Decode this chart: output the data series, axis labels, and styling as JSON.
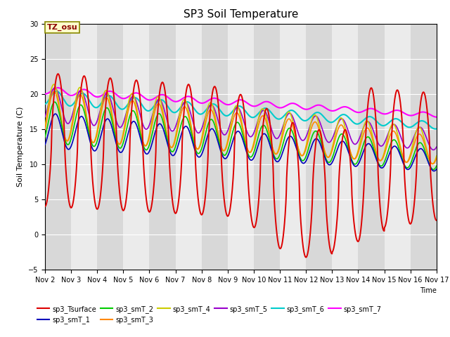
{
  "title": "SP3 Soil Temperature",
  "ylabel": "Soil Temperature (C)",
  "time_label": "Time",
  "tz_label": "TZ_osu",
  "ylim": [
    -5,
    30
  ],
  "yticks": [
    -5,
    0,
    5,
    10,
    15,
    20,
    25,
    30
  ],
  "xtick_labels": [
    "Nov 2",
    "Nov 3",
    "Nov 4",
    "Nov 5",
    "Nov 6",
    "Nov 7",
    "Nov 8",
    "Nov 9",
    "Nov 10",
    "Nov 11",
    "Nov 12",
    "Nov 13",
    "Nov 14",
    "Nov 15",
    "Nov 16",
    "Nov 17"
  ],
  "plot_bg_light": "#ebebeb",
  "plot_bg_dark": "#d8d8d8",
  "fig_bg_color": "#ffffff",
  "grid_color": "#ffffff",
  "series_colors": {
    "sp3_Tsurface": "#dd0000",
    "sp3_smT_1": "#0000bb",
    "sp3_smT_2": "#00cc00",
    "sp3_smT_3": "#ff8800",
    "sp3_smT_4": "#cccc00",
    "sp3_smT_5": "#9900cc",
    "sp3_smT_6": "#00cccc",
    "sp3_smT_7": "#ff00ff"
  }
}
